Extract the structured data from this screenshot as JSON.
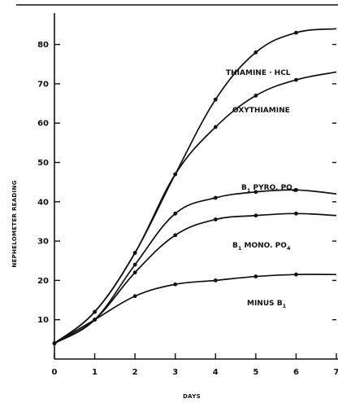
{
  "chart_data": {
    "type": "line",
    "title": "",
    "xlabel": "DAYS",
    "ylabel": "NEPHELOMETER READING",
    "xlim": [
      0,
      7
    ],
    "ylim": [
      0,
      88
    ],
    "x_ticks": [
      "0",
      "1",
      "2",
      "3",
      "4",
      "5",
      "6",
      "7"
    ],
    "y_ticks": [
      "10",
      "20",
      "30",
      "40",
      "50",
      "60",
      "70",
      "80"
    ],
    "grid": false,
    "legend": "none (labels placed next to curves)",
    "series": [
      {
        "name": "THIAMINE · HCL",
        "label_parts": [
          "THIAMINE · HCL"
        ],
        "x": [
          0,
          1,
          2,
          3,
          4,
          5,
          6,
          7
        ],
        "y": [
          4,
          12,
          27,
          47,
          66,
          78,
          83,
          84
        ]
      },
      {
        "name": "OXYTHIAMINE",
        "label_parts": [
          "OXYTHIAMINE"
        ],
        "x": [
          0,
          1,
          2,
          3,
          4,
          5,
          6,
          7
        ],
        "y": [
          4,
          12,
          27,
          47,
          59,
          67,
          71,
          73
        ]
      },
      {
        "name": "B1 PYRO PO4",
        "label_parts": [
          "B",
          "1",
          " PYRO. PO",
          "4"
        ],
        "x": [
          0,
          1,
          2,
          3,
          4,
          5,
          6,
          7
        ],
        "y": [
          4,
          10,
          24,
          37,
          41,
          42.5,
          43,
          42
        ]
      },
      {
        "name": "B1 MONO PO4",
        "label_parts": [
          "B",
          "1",
          " MONO. PO",
          "4"
        ],
        "x": [
          0,
          1,
          2,
          3,
          4,
          5,
          6,
          7
        ],
        "y": [
          4,
          10,
          22,
          31.5,
          35.5,
          36.5,
          37,
          36.5
        ]
      },
      {
        "name": "MINUS B1",
        "label_parts": [
          "MINUS  B",
          "1"
        ],
        "x": [
          0,
          1,
          2,
          3,
          4,
          5,
          6,
          7
        ],
        "y": [
          4,
          10,
          16,
          19,
          20,
          21,
          21.5,
          21.5
        ]
      }
    ]
  }
}
